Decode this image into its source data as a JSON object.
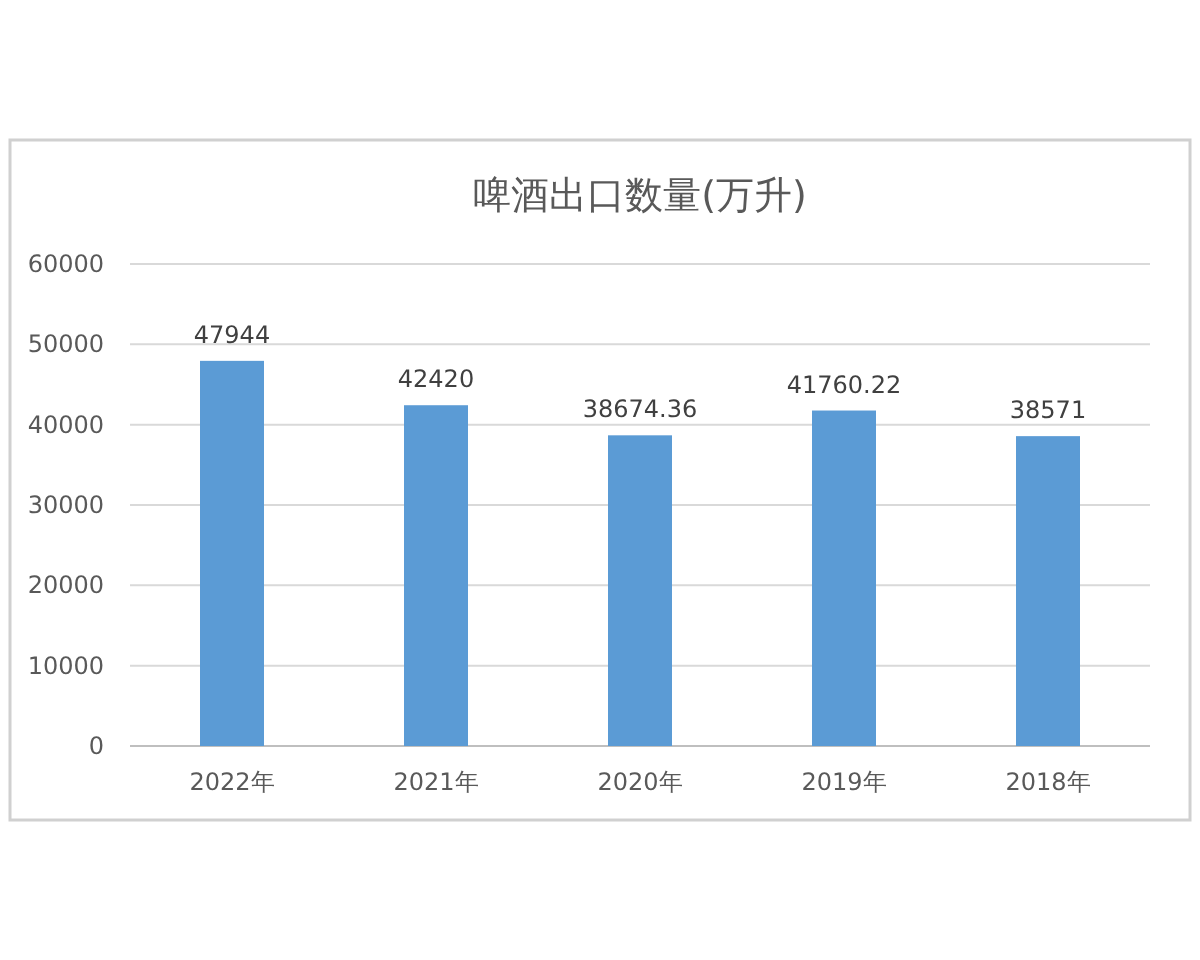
{
  "chart_data": {
    "type": "bar",
    "title": "啤酒出口数量(万升)",
    "categories": [
      "2022年",
      "2021年",
      "2020年",
      "2019年",
      "2018年"
    ],
    "values": [
      47944,
      42420,
      38674.36,
      41760.22,
      38571
    ],
    "color": "#5b9bd5",
    "ylim": [
      0,
      60000
    ],
    "yticks": [
      0,
      10000,
      20000,
      30000,
      40000,
      50000,
      60000
    ],
    "grid": "y",
    "data_labels": true
  }
}
